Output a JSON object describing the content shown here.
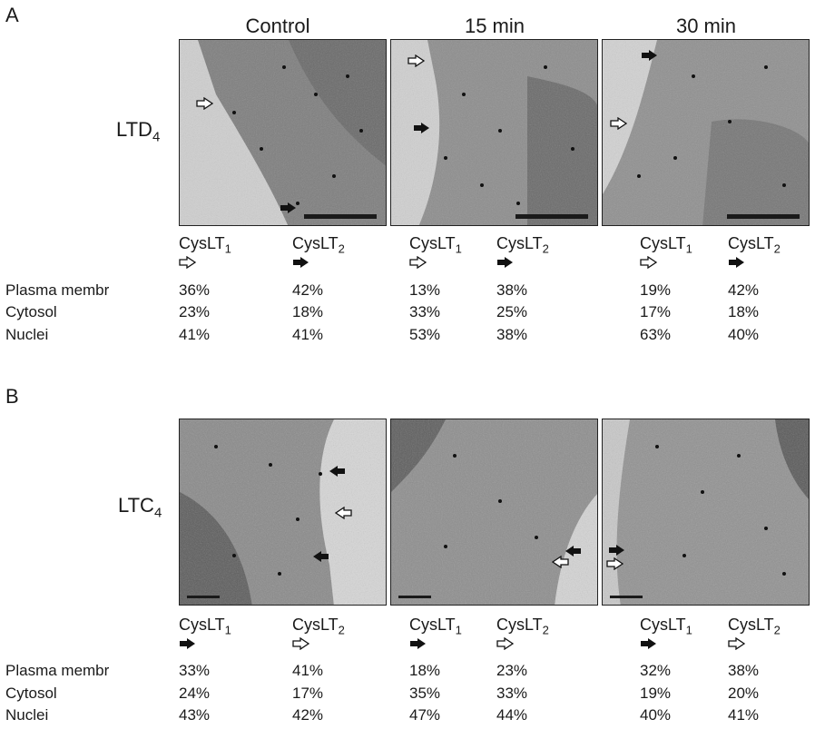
{
  "panels": [
    {
      "letter": "A",
      "ligand": "LTD",
      "ligand_sub": "4",
      "time_labels": [
        "Control",
        "15 min",
        "30 min"
      ],
      "receptors": [
        {
          "name": "CysLT",
          "sub": "1",
          "marker": "open-arrow"
        },
        {
          "name": "CysLT",
          "sub": "2",
          "marker": "filled-arrow"
        }
      ],
      "rows": [
        {
          "label": "Plasma membr",
          "values": [
            "36%",
            "42%",
            "13%",
            "38%",
            "19%",
            "42%"
          ]
        },
        {
          "label": "Cytosol",
          "values": [
            "23%",
            "18%",
            "33%",
            "25%",
            "17%",
            "18%"
          ]
        },
        {
          "label": "Nuclei",
          "values": [
            "41%",
            "41%",
            "53%",
            "38%",
            "63%",
            "40%"
          ]
        }
      ]
    },
    {
      "letter": "B",
      "ligand": "LTC",
      "ligand_sub": "4",
      "receptors": [
        {
          "name": "CysLT",
          "sub": "1",
          "marker": "filled-arrow"
        },
        {
          "name": "CysLT",
          "sub": "2",
          "marker": "open-arrow"
        }
      ],
      "rows": [
        {
          "label": "Plasma membr",
          "values": [
            "33%",
            "41%",
            "18%",
            "23%",
            "32%",
            "38%"
          ]
        },
        {
          "label": "Cytosol",
          "values": [
            "24%",
            "17%",
            "35%",
            "33%",
            "19%",
            "20%"
          ]
        },
        {
          "label": "Nuclei",
          "values": [
            "43%",
            "42%",
            "47%",
            "44%",
            "40%",
            "41%"
          ]
        }
      ]
    }
  ],
  "colors": {
    "cell_dark": "#6f6f6f",
    "cell_mid": "#8a8a8a",
    "background_light": "#d4d4d4",
    "gold_particle": "#111111",
    "scale_bar": "#1a1a1a"
  }
}
